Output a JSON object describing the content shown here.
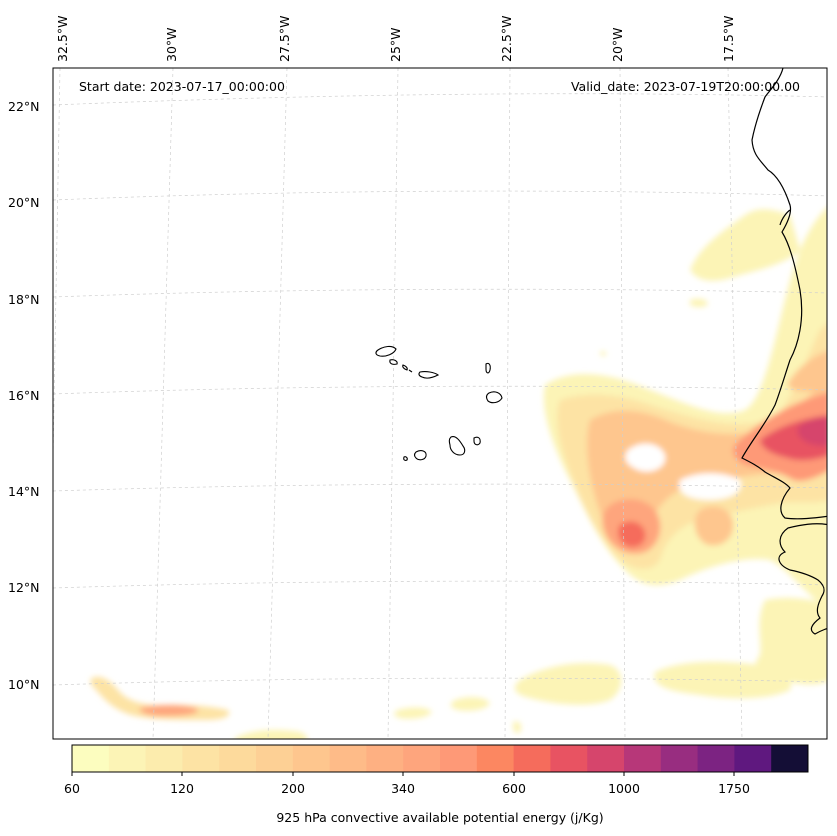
{
  "map": {
    "start_date": "Start date: 2023-07-17_00:00:00",
    "valid_date": "Valid_date: 2023-07-19T20:00:00.00",
    "lon_labels": [
      "32.5°W",
      "30°W",
      "27.5°W",
      "25°W",
      "22.5°W",
      "20°W",
      "17.5°W"
    ],
    "lat_labels": [
      "22°N",
      "20°N",
      "18°N",
      "16°N",
      "14°N",
      "12°N",
      "10°N"
    ],
    "gridlines": "dashed, light grey"
  },
  "colorbar": {
    "ticks": [
      "60",
      "120",
      "200",
      "340",
      "600",
      "1000",
      "1750"
    ],
    "label": "925 hPa convective available potential energy (j/Kg)",
    "colors": [
      "#fcfdbf",
      "#fcf4b6",
      "#fcecad",
      "#fde3a4",
      "#fdda9c",
      "#fdd095",
      "#fec68e",
      "#febb88",
      "#feb082",
      "#fea57d",
      "#fe9977",
      "#fc8761",
      "#f56c5c",
      "#e85362",
      "#d6456c",
      "#b73779",
      "#982d80",
      "#7c2382",
      "#5f187f",
      "#140e36"
    ]
  }
}
